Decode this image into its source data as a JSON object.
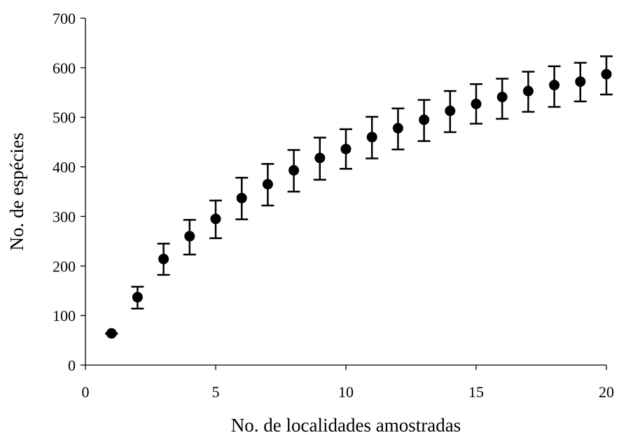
{
  "chart_data": {
    "type": "scatter",
    "title": "",
    "xlabel": "No. de localidades amostradas",
    "ylabel": "No. de espécies",
    "xlim": [
      0,
      20
    ],
    "ylim": [
      0,
      700
    ],
    "x_ticks": [
      0,
      5,
      10,
      15,
      20
    ],
    "y_ticks": [
      0,
      100,
      200,
      300,
      400,
      500,
      600,
      700
    ],
    "grid": false,
    "legend": "none",
    "marker_color": "#000000",
    "series": [
      {
        "x": [
          1,
          2,
          3,
          4,
          5,
          6,
          7,
          8,
          9,
          10,
          11,
          12,
          13,
          14,
          15,
          16,
          17,
          18,
          19,
          20
        ],
        "y": [
          64,
          137,
          214,
          260,
          295,
          337,
          365,
          393,
          418,
          436,
          460,
          478,
          495,
          513,
          527,
          541,
          553,
          565,
          572,
          587
        ],
        "error_low": [
          63,
          114,
          182,
          223,
          256,
          294,
          322,
          350,
          374,
          396,
          417,
          435,
          452,
          470,
          487,
          497,
          511,
          521,
          532,
          546
        ],
        "error_high": [
          64,
          158,
          245,
          293,
          332,
          378,
          406,
          434,
          459,
          476,
          501,
          518,
          535,
          553,
          567,
          578,
          592,
          603,
          610,
          623
        ]
      }
    ]
  }
}
